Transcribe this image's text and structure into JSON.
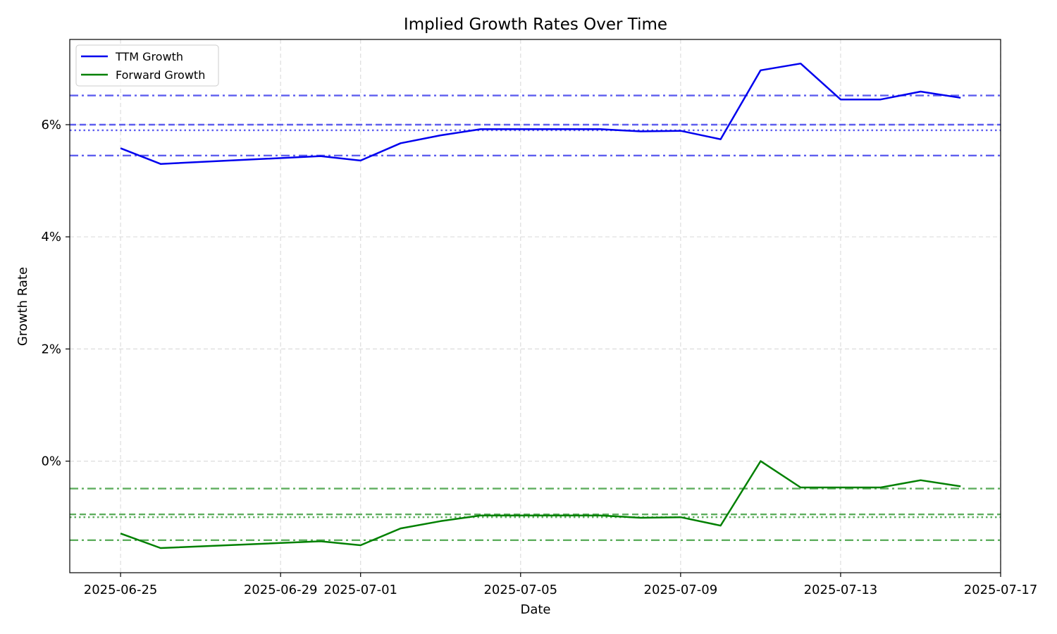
{
  "chart_data": {
    "type": "line",
    "title": "Implied Growth Rates Over Time",
    "xlabel": "Date",
    "ylabel": "Growth Rate",
    "x_ticks": [
      "2025-06-25",
      "2025-06-29",
      "2025-07-01",
      "2025-07-05",
      "2025-07-09",
      "2025-07-13",
      "2025-07-17"
    ],
    "y_ticks": [
      0,
      2,
      4,
      6
    ],
    "y_tick_labels": [
      "0%",
      "2%",
      "4%",
      "6%"
    ],
    "xlim": [
      "2025-06-24",
      "2025-07-17"
    ],
    "ylim": [
      -1.99,
      7.52
    ],
    "grid": true,
    "legend_position": "top-left",
    "colors": {
      "ttm": "#0000ee",
      "forward": "#008000",
      "ttm_ref": "#5555ee",
      "forward_ref": "#55aa55"
    },
    "series": [
      {
        "name": "TTM Growth",
        "color": "#0000ee",
        "x": [
          "2025-06-25",
          "2025-06-26",
          "2025-06-30",
          "2025-07-01",
          "2025-07-02",
          "2025-07-03",
          "2025-07-04",
          "2025-07-07",
          "2025-07-08",
          "2025-07-09",
          "2025-07-10",
          "2025-07-11",
          "2025-07-12",
          "2025-07-13",
          "2025-07-14",
          "2025-07-15",
          "2025-07-16"
        ],
        "y": [
          5.58,
          5.3,
          5.44,
          5.36,
          5.67,
          5.81,
          5.92,
          5.92,
          5.88,
          5.89,
          5.74,
          6.97,
          7.09,
          6.45,
          6.45,
          6.59,
          6.48
        ]
      },
      {
        "name": "Forward Growth",
        "color": "#008000",
        "x": [
          "2025-06-25",
          "2025-06-26",
          "2025-06-30",
          "2025-07-01",
          "2025-07-02",
          "2025-07-03",
          "2025-07-04",
          "2025-07-07",
          "2025-07-08",
          "2025-07-09",
          "2025-07-10",
          "2025-07-11",
          "2025-07-12",
          "2025-07-13",
          "2025-07-14",
          "2025-07-15",
          "2025-07-16"
        ],
        "y": [
          -1.29,
          -1.55,
          -1.43,
          -1.5,
          -1.2,
          -1.07,
          -0.97,
          -0.97,
          -1.01,
          -1.0,
          -1.15,
          0.0,
          -0.47,
          -0.47,
          -0.47,
          -0.34,
          -0.45
        ]
      }
    ],
    "reference_lines": [
      {
        "y": 6.52,
        "style": "dashdot",
        "color": "#5555ee"
      },
      {
        "y": 6.0,
        "style": "dashed",
        "color": "#5555ee"
      },
      {
        "y": 5.9,
        "style": "dotted",
        "color": "#5555ee"
      },
      {
        "y": 5.45,
        "style": "dashdot",
        "color": "#5555ee"
      },
      {
        "y": -0.49,
        "style": "dashdot",
        "color": "#55aa55"
      },
      {
        "y": -0.95,
        "style": "dashed",
        "color": "#55aa55"
      },
      {
        "y": -1.0,
        "style": "dotted",
        "color": "#55aa55"
      },
      {
        "y": -1.41,
        "style": "dashdot",
        "color": "#55aa55"
      }
    ]
  }
}
